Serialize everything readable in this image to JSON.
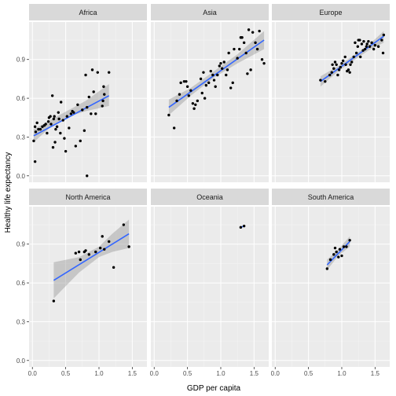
{
  "chart_data": {
    "type": "scatter",
    "facet_by": "continent",
    "xlabel": "GDP per capita",
    "ylabel": "Healthy life expectancy",
    "xlim": [
      -0.05,
      1.72
    ],
    "ylim": [
      -0.05,
      1.19
    ],
    "x_ticks": [
      0.0,
      0.5,
      1.0,
      1.5
    ],
    "x_tick_labels": [
      "0.0",
      "0.5",
      "1.0",
      "1.5"
    ],
    "y_ticks": [
      0.0,
      0.3,
      0.6,
      0.9
    ],
    "y_tick_labels": [
      "0.0",
      "0.3",
      "0.6",
      "0.9"
    ],
    "grid": true,
    "trend": "linear regression with confidence band",
    "colors": {
      "panel_bg": "#ebebeb",
      "grid_major": "#ffffff",
      "strip_bg": "#d9d9d9",
      "point": "#000000",
      "trend_line": "#3366ff",
      "band": "#999999"
    },
    "panels": [
      {
        "name": "Africa",
        "points": [
          [
            0.02,
            0.27
          ],
          [
            0.04,
            0.11
          ],
          [
            0.04,
            0.38
          ],
          [
            0.05,
            0.34
          ],
          [
            0.07,
            0.41
          ],
          [
            0.09,
            0.36
          ],
          [
            0.12,
            0.36
          ],
          [
            0.15,
            0.38
          ],
          [
            0.18,
            0.39
          ],
          [
            0.2,
            0.4
          ],
          [
            0.22,
            0.33
          ],
          [
            0.24,
            0.42
          ],
          [
            0.25,
            0.45
          ],
          [
            0.27,
            0.46
          ],
          [
            0.28,
            0.4
          ],
          [
            0.3,
            0.62
          ],
          [
            0.31,
            0.22
          ],
          [
            0.32,
            0.44
          ],
          [
            0.33,
            0.46
          ],
          [
            0.34,
            0.26
          ],
          [
            0.35,
            0.36
          ],
          [
            0.37,
            0.38
          ],
          [
            0.39,
            0.49
          ],
          [
            0.4,
            0.44
          ],
          [
            0.42,
            0.33
          ],
          [
            0.43,
            0.57
          ],
          [
            0.46,
            0.43
          ],
          [
            0.48,
            0.29
          ],
          [
            0.5,
            0.19
          ],
          [
            0.52,
            0.46
          ],
          [
            0.55,
            0.37
          ],
          [
            0.58,
            0.48
          ],
          [
            0.6,
            0.5
          ],
          [
            0.62,
            0.49
          ],
          [
            0.65,
            0.23
          ],
          [
            0.68,
            0.55
          ],
          [
            0.72,
            0.27
          ],
          [
            0.75,
            0.51
          ],
          [
            0.78,
            0.35
          ],
          [
            0.8,
            0.78
          ],
          [
            0.82,
            0.53
          ],
          [
            0.85,
            0.61
          ],
          [
            0.88,
            0.48
          ],
          [
            0.9,
            0.82
          ],
          [
            0.92,
            0.65
          ],
          [
            0.95,
            0.48
          ],
          [
            0.98,
            0.8
          ],
          [
            1.05,
            0.54
          ],
          [
            1.06,
            0.58
          ],
          [
            1.07,
            0.69
          ],
          [
            1.08,
            0.63
          ],
          [
            1.15,
            0.8
          ],
          [
            0.82,
            0.0
          ]
        ],
        "fit": {
          "x0": 0.02,
          "x1": 1.15,
          "y0": 0.31,
          "y1": 0.62
        },
        "band": [
          [
            0.02,
            0.26,
            0.36
          ],
          [
            0.3,
            0.39,
            0.44
          ],
          [
            0.55,
            0.46,
            0.51
          ],
          [
            0.8,
            0.5,
            0.58
          ],
          [
            1.15,
            0.54,
            0.71
          ]
        ]
      },
      {
        "name": "Asia",
        "points": [
          [
            0.22,
            0.47
          ],
          [
            0.3,
            0.37
          ],
          [
            0.34,
            0.58
          ],
          [
            0.38,
            0.63
          ],
          [
            0.4,
            0.72
          ],
          [
            0.45,
            0.73
          ],
          [
            0.48,
            0.73
          ],
          [
            0.5,
            0.69
          ],
          [
            0.52,
            0.62
          ],
          [
            0.55,
            0.66
          ],
          [
            0.58,
            0.56
          ],
          [
            0.6,
            0.52
          ],
          [
            0.62,
            0.55
          ],
          [
            0.65,
            0.58
          ],
          [
            0.7,
            0.75
          ],
          [
            0.72,
            0.64
          ],
          [
            0.74,
            0.8
          ],
          [
            0.76,
            0.6
          ],
          [
            0.78,
            0.7
          ],
          [
            0.82,
            0.72
          ],
          [
            0.85,
            0.81
          ],
          [
            0.88,
            0.78
          ],
          [
            0.9,
            0.74
          ],
          [
            0.92,
            0.69
          ],
          [
            0.95,
            0.78
          ],
          [
            0.98,
            0.85
          ],
          [
            1.0,
            0.87
          ],
          [
            1.02,
            0.83
          ],
          [
            1.05,
            0.88
          ],
          [
            1.08,
            0.78
          ],
          [
            1.1,
            0.82
          ],
          [
            1.12,
            0.95
          ],
          [
            1.15,
            0.68
          ],
          [
            1.18,
            0.72
          ],
          [
            1.2,
            0.98
          ],
          [
            1.25,
            0.91
          ],
          [
            1.28,
            0.98
          ],
          [
            1.3,
            1.07
          ],
          [
            1.32,
            1.07
          ],
          [
            1.35,
            1.03
          ],
          [
            1.38,
            0.95
          ],
          [
            1.4,
            0.79
          ],
          [
            1.42,
            1.13
          ],
          [
            1.45,
            0.82
          ],
          [
            1.48,
            1.11
          ],
          [
            1.52,
            1.03
          ],
          [
            1.55,
            0.98
          ],
          [
            1.58,
            1.12
          ],
          [
            1.62,
            0.9
          ],
          [
            1.65,
            0.87
          ]
        ],
        "fit": {
          "x0": 0.22,
          "x1": 1.65,
          "y0": 0.53,
          "y1": 1.05
        },
        "band": [
          [
            0.22,
            0.47,
            0.59
          ],
          [
            0.55,
            0.62,
            0.68
          ],
          [
            0.9,
            0.76,
            0.81
          ],
          [
            1.25,
            0.87,
            0.94
          ],
          [
            1.65,
            0.98,
            1.12
          ]
        ]
      },
      {
        "name": "Europe",
        "points": [
          [
            0.68,
            0.74
          ],
          [
            0.75,
            0.73
          ],
          [
            0.82,
            0.78
          ],
          [
            0.85,
            0.8
          ],
          [
            0.86,
            0.86
          ],
          [
            0.88,
            0.83
          ],
          [
            0.9,
            0.88
          ],
          [
            0.92,
            0.86
          ],
          [
            0.94,
            0.78
          ],
          [
            0.96,
            0.82
          ],
          [
            0.98,
            0.84
          ],
          [
            1.0,
            0.87
          ],
          [
            1.02,
            0.89
          ],
          [
            1.05,
            0.92
          ],
          [
            1.06,
            0.86
          ],
          [
            1.08,
            0.81
          ],
          [
            1.1,
            0.82
          ],
          [
            1.12,
            0.8
          ],
          [
            1.13,
            0.86
          ],
          [
            1.15,
            0.88
          ],
          [
            1.18,
            0.92
          ],
          [
            1.2,
            1.03
          ],
          [
            1.22,
            0.95
          ],
          [
            1.24,
            1.0
          ],
          [
            1.25,
            1.05
          ],
          [
            1.27,
            1.05
          ],
          [
            1.28,
            0.92
          ],
          [
            1.3,
            1.02
          ],
          [
            1.32,
            0.97
          ],
          [
            1.33,
            1.04
          ],
          [
            1.35,
            0.98
          ],
          [
            1.37,
            1.0
          ],
          [
            1.38,
            1.02
          ],
          [
            1.4,
            1.04
          ],
          [
            1.42,
            1.0
          ],
          [
            1.45,
            1.03
          ],
          [
            1.48,
            0.98
          ],
          [
            1.5,
            1.01
          ],
          [
            1.55,
            1.0
          ],
          [
            1.6,
            1.05
          ],
          [
            1.62,
            0.95
          ],
          [
            1.63,
            1.09
          ]
        ],
        "fit": {
          "x0": 0.68,
          "x1": 1.63,
          "y0": 0.73,
          "y1": 1.08
        },
        "band": [
          [
            0.68,
            0.69,
            0.77
          ],
          [
            0.95,
            0.81,
            0.85
          ],
          [
            1.2,
            0.9,
            0.94
          ],
          [
            1.4,
            0.97,
            1.01
          ],
          [
            1.63,
            1.03,
            1.12
          ]
        ]
      },
      {
        "name": "North America",
        "points": [
          [
            0.32,
            0.46
          ],
          [
            0.65,
            0.83
          ],
          [
            0.7,
            0.84
          ],
          [
            0.72,
            0.78
          ],
          [
            0.78,
            0.84
          ],
          [
            0.8,
            0.85
          ],
          [
            0.85,
            0.82
          ],
          [
            0.95,
            0.84
          ],
          [
            1.02,
            0.87
          ],
          [
            1.05,
            0.96
          ],
          [
            1.08,
            0.86
          ],
          [
            1.15,
            0.92
          ],
          [
            1.22,
            0.72
          ],
          [
            1.37,
            1.05
          ],
          [
            1.45,
            0.88
          ]
        ],
        "fit": {
          "x0": 0.32,
          "x1": 1.45,
          "y0": 0.62,
          "y1": 0.98
        },
        "band": [
          [
            0.32,
            0.48,
            0.76
          ],
          [
            0.7,
            0.68,
            0.8
          ],
          [
            1.0,
            0.8,
            0.88
          ],
          [
            1.2,
            0.84,
            0.98
          ],
          [
            1.45,
            0.87,
            1.09
          ]
        ]
      },
      {
        "name": "Oceania",
        "points": [
          [
            1.3,
            1.03
          ],
          [
            1.35,
            1.04
          ]
        ],
        "fit": {
          "x0": 1.3,
          "x1": 1.35,
          "y0": 1.03,
          "y1": 1.04
        },
        "band": []
      },
      {
        "name": "South America",
        "points": [
          [
            0.78,
            0.71
          ],
          [
            0.83,
            0.78
          ],
          [
            0.88,
            0.82
          ],
          [
            0.9,
            0.87
          ],
          [
            0.92,
            0.84
          ],
          [
            0.95,
            0.8
          ],
          [
            0.97,
            0.86
          ],
          [
            1.0,
            0.81
          ],
          [
            1.03,
            0.88
          ],
          [
            1.07,
            0.88
          ],
          [
            1.12,
            0.93
          ]
        ],
        "fit": {
          "x0": 0.78,
          "x1": 1.12,
          "y0": 0.74,
          "y1": 0.92
        },
        "band": [
          [
            0.78,
            0.7,
            0.78
          ],
          [
            0.95,
            0.81,
            0.86
          ],
          [
            1.12,
            0.88,
            0.96
          ]
        ]
      }
    ]
  }
}
